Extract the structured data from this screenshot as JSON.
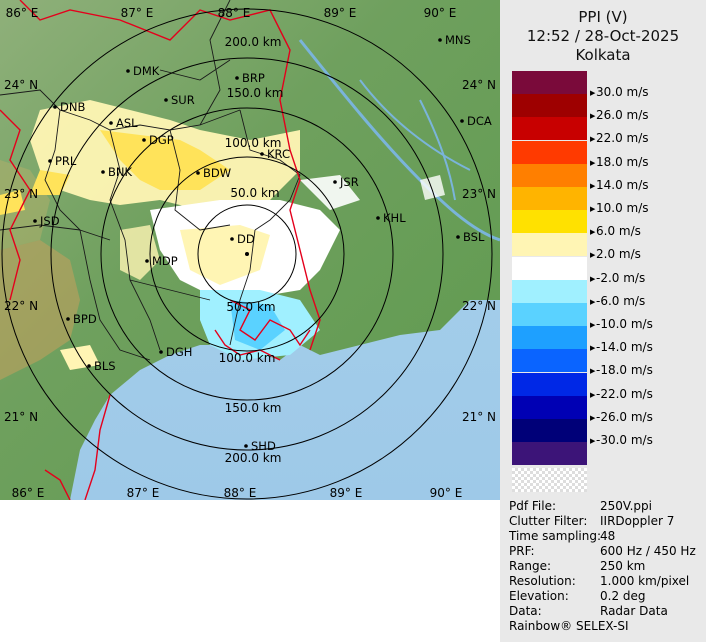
{
  "header": {
    "product": "PPI (V)",
    "datetime": "12:52 / 28-Oct-2025",
    "station": "Kolkata"
  },
  "legend": [
    {
      "label": "30.0 m/s",
      "color": "#7a0a3a"
    },
    {
      "label": "26.0 m/s",
      "color": "#9e0000"
    },
    {
      "label": "22.0 m/s",
      "color": "#c80000"
    },
    {
      "label": "18.0 m/s",
      "color": "#ff3a00"
    },
    {
      "label": "14.0 m/s",
      "color": "#ff7f00"
    },
    {
      "label": "10.0 m/s",
      "color": "#ffb400"
    },
    {
      "label": " 6.0 m/s",
      "color": "#ffe100"
    },
    {
      "label": " 2.0 m/s",
      "color": "#fff5b4"
    },
    {
      "label": "-2.0 m/s",
      "color": "#ffffff"
    },
    {
      "label": "-6.0 m/s",
      "color": "#a0f0ff"
    },
    {
      "label": "-10.0 m/s",
      "color": "#5ad2ff"
    },
    {
      "label": "-14.0 m/s",
      "color": "#1ea0ff"
    },
    {
      "label": "-18.0 m/s",
      "color": "#0a64ff"
    },
    {
      "label": "-22.0 m/s",
      "color": "#0028e6"
    },
    {
      "label": "-26.0 m/s",
      "color": "#0000b4"
    },
    {
      "label": "-30.0 m/s",
      "color": "#000078"
    },
    {
      "label": "",
      "color": "#3c1478"
    }
  ],
  "info": [
    {
      "key": "Pdf File:",
      "value": "250V.ppi"
    },
    {
      "key": "Clutter Filter:",
      "value": "IIRDoppler 7"
    },
    {
      "key": "Time sampling:",
      "value": "48"
    },
    {
      "key": "PRF:",
      "value": "600 Hz / 450 Hz"
    },
    {
      "key": "Range:",
      "value": "250 km"
    },
    {
      "key": "Resolution:",
      "value": "1.000 km/pixel"
    },
    {
      "key": "Elevation:",
      "value": "0.2 deg"
    },
    {
      "key": "Data:",
      "value": "Radar Data"
    }
  ],
  "footer": "Rainbow® SELEX-SI",
  "map": {
    "lon_labels": [
      "86° E",
      "87° E",
      "88° E",
      "89° E",
      "90° E"
    ],
    "lat_labels": [
      "24° N",
      "23° N",
      "22° N",
      "21° N"
    ],
    "range_rings": [
      "50.0 km",
      "100.0 km",
      "150.0 km",
      "200.0 km",
      "50.0 km",
      "100.0 km",
      "150.0 km",
      "200.0 km"
    ],
    "places": [
      "MNS",
      "DMK",
      "BRP",
      "SUR",
      "DNB",
      "ASL",
      "DCA",
      "DGP",
      "KRC",
      "PRL",
      "BNK",
      "BDW",
      "JSR",
      "KHL",
      "JSD",
      "DD",
      "BSL",
      "MDP",
      "BPD",
      "DGH",
      "BLS",
      "SHD"
    ]
  }
}
